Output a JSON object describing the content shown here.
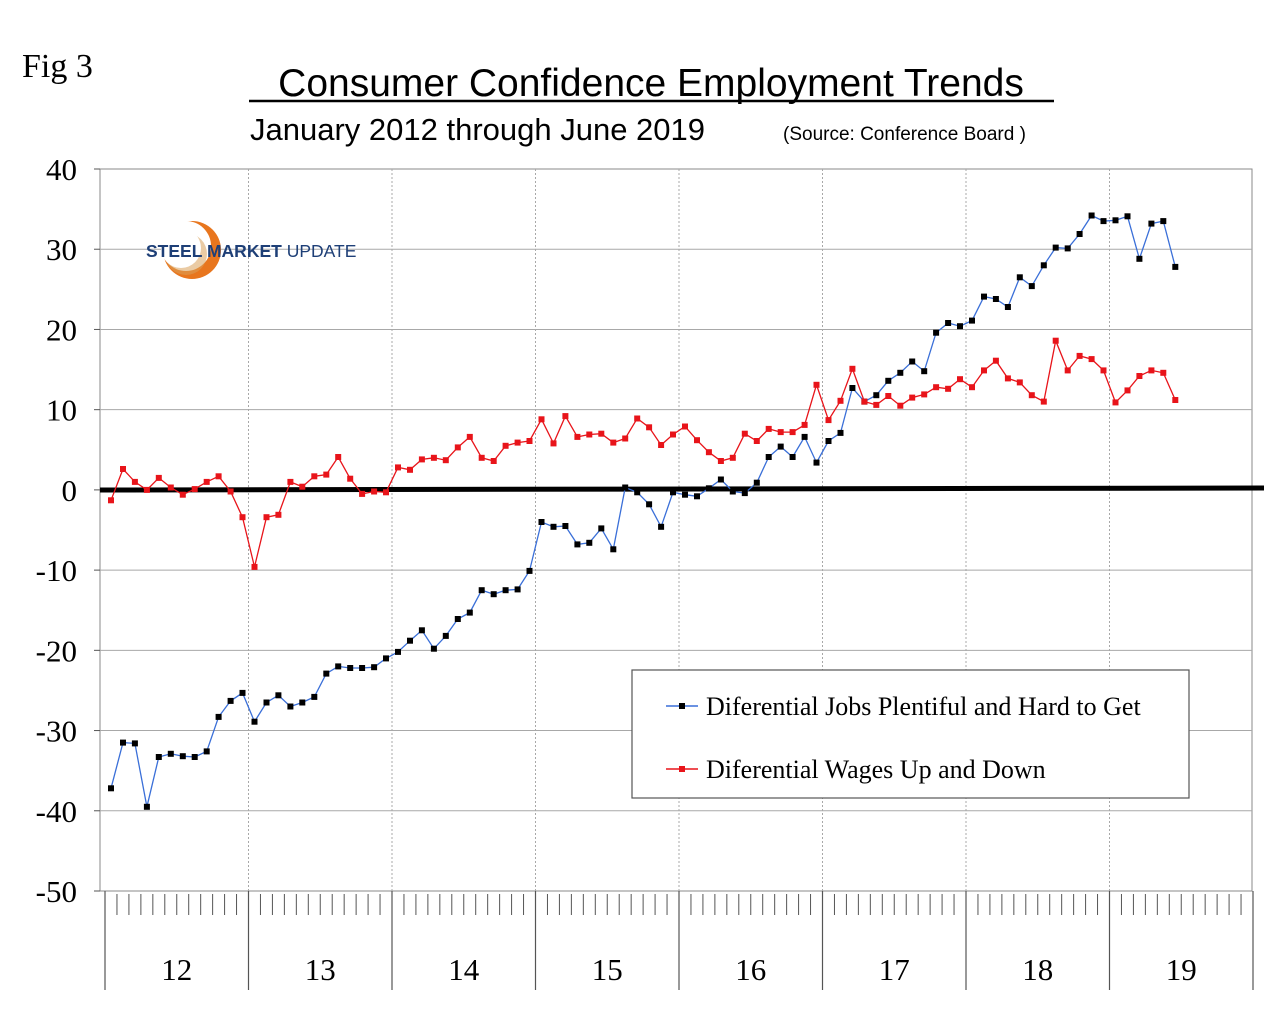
{
  "figure_label": "Fig 3",
  "logo": {
    "word1": "STEEL",
    "word2": "MARKET",
    "word3": "UPDATE"
  },
  "chart_data": {
    "type": "line",
    "title": "Consumer Confidence Employment Trends",
    "subtitle": "January 2012 through June 2019",
    "source": "(Source: Conference Board )",
    "ylim": [
      -50,
      40
    ],
    "yticks": [
      40,
      30,
      20,
      10,
      0,
      -10,
      -20,
      -30,
      -40,
      -50
    ],
    "year_labels": [
      "12",
      "13",
      "14",
      "15",
      "16",
      "17",
      "18",
      "19"
    ],
    "x_start": "2012-01",
    "x_end": "2019-06",
    "grid": true,
    "legend_position": "bottom-right",
    "series": [
      {
        "name": "Diferential Jobs Plentiful and Hard to Get",
        "color": "#3a6fd8",
        "values": [
          -37.2,
          -31.5,
          -31.6,
          -39.5,
          -33.3,
          -32.9,
          -33.2,
          -33.3,
          -32.6,
          -28.3,
          -26.3,
          -25.3,
          -28.9,
          -26.5,
          -25.6,
          -27.0,
          -26.5,
          -25.8,
          -22.9,
          -22.0,
          -22.2,
          -22.2,
          -22.1,
          -21.0,
          -20.2,
          -18.8,
          -17.5,
          -19.8,
          -18.2,
          -16.1,
          -15.3,
          -12.5,
          -13.0,
          -12.5,
          -12.4,
          -10.1,
          -4.0,
          -4.6,
          -4.5,
          -6.8,
          -6.6,
          -4.8,
          -7.4,
          0.3,
          -0.3,
          -1.8,
          -4.6,
          -0.3,
          -0.6,
          -0.8,
          0.2,
          1.3,
          -0.2,
          -0.4,
          0.9,
          4.1,
          5.4,
          4.1,
          6.6,
          3.4,
          6.1,
          7.1,
          12.7,
          11.0,
          11.8,
          13.6,
          14.6,
          16.0,
          14.8,
          19.6,
          20.8,
          20.4,
          21.1,
          24.1,
          23.8,
          22.8,
          26.5,
          25.4,
          28.0,
          30.2,
          30.1,
          31.9,
          34.2,
          33.5,
          33.6,
          34.1,
          28.8,
          33.2,
          33.5,
          27.8
        ]
      },
      {
        "name": "Diferential Wages Up and Down",
        "color": "#e8141a",
        "values": [
          -1.3,
          2.6,
          1.0,
          0.0,
          1.5,
          0.3,
          -0.6,
          0.1,
          1.0,
          1.7,
          -0.2,
          -3.4,
          -9.6,
          -3.4,
          -3.1,
          1.0,
          0.4,
          1.7,
          1.9,
          4.1,
          1.4,
          -0.5,
          -0.2,
          -0.3,
          2.8,
          2.5,
          3.8,
          4.0,
          3.7,
          5.3,
          6.6,
          4.0,
          3.6,
          5.5,
          5.9,
          6.1,
          8.8,
          5.8,
          9.2,
          6.6,
          6.9,
          7.0,
          5.9,
          6.4,
          8.9,
          7.8,
          5.6,
          6.9,
          7.9,
          6.2,
          4.7,
          3.6,
          4.0,
          7.0,
          6.1,
          7.6,
          7.2,
          7.2,
          8.1,
          13.1,
          8.7,
          11.1,
          15.1,
          11.0,
          10.6,
          11.7,
          10.5,
          11.5,
          11.9,
          12.8,
          12.6,
          13.8,
          12.8,
          14.9,
          16.1,
          13.9,
          13.4,
          11.8,
          11.0,
          18.6,
          14.9,
          16.7,
          16.3,
          14.9,
          10.9,
          12.4,
          14.2,
          14.9,
          14.6,
          11.2
        ]
      }
    ]
  }
}
